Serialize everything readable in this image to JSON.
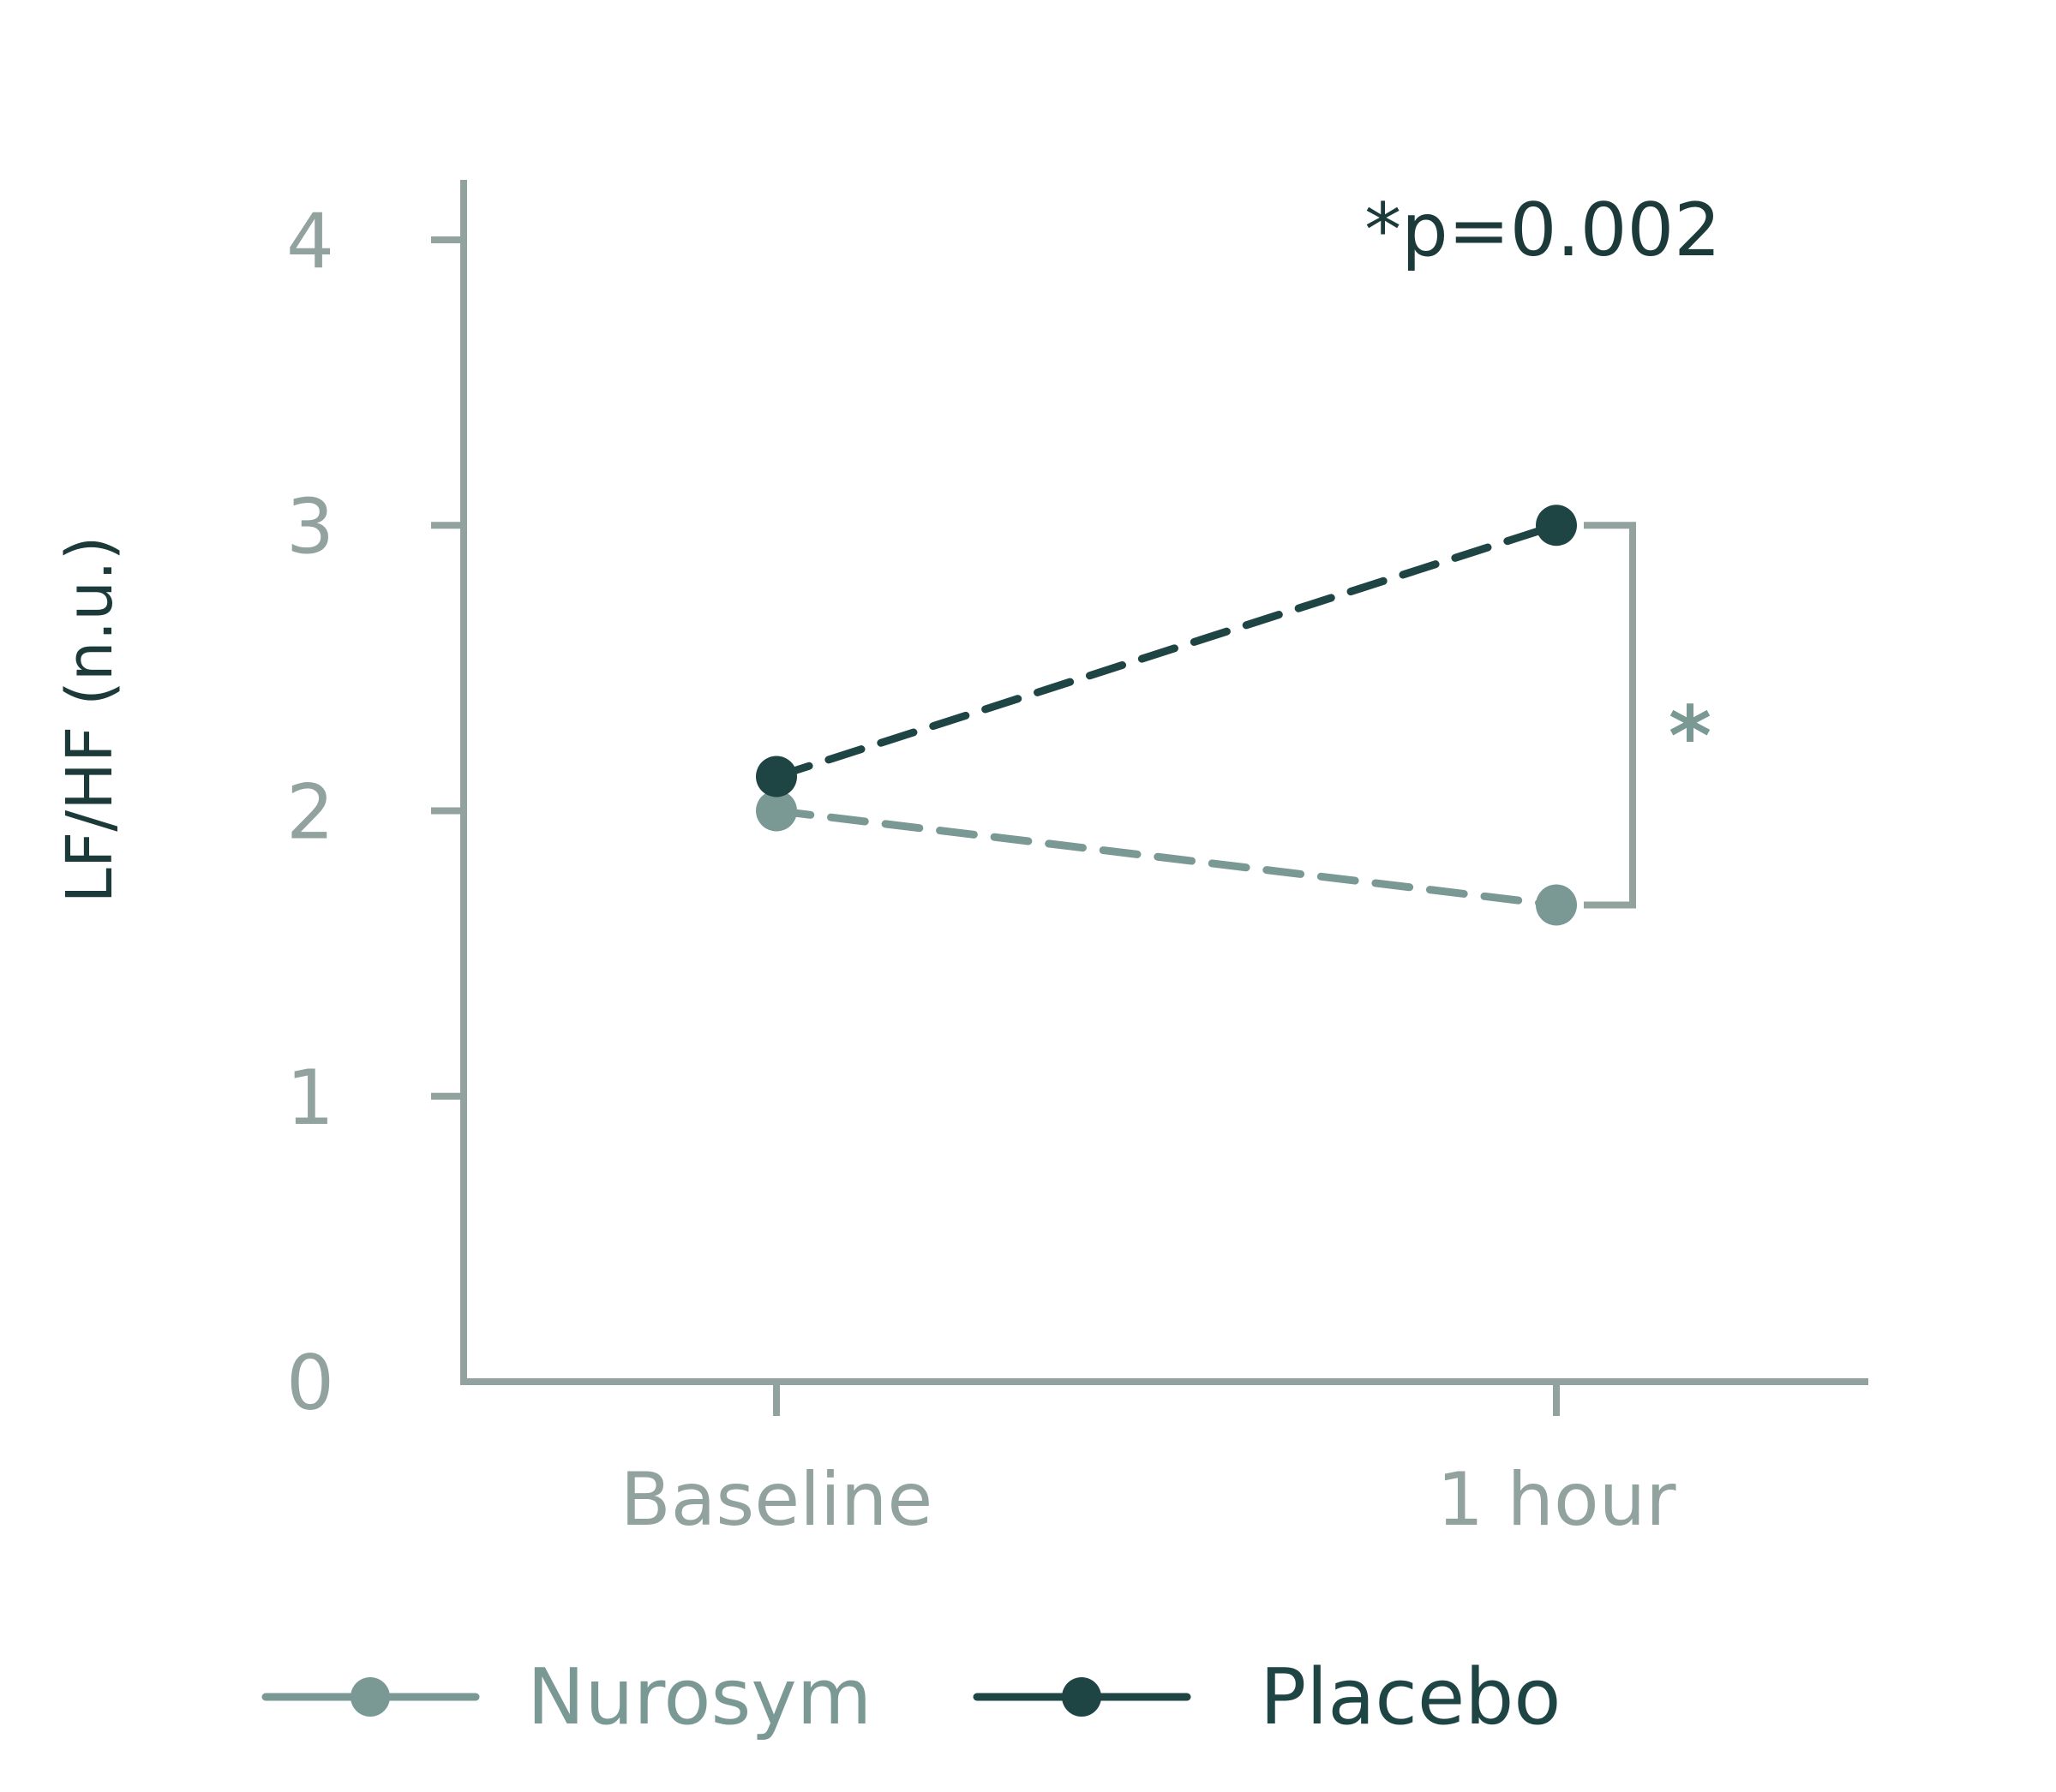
{
  "chart_data": {
    "type": "line",
    "ylabel": "LF/HF (n.u.)",
    "xlabel": "",
    "categories": [
      "Baseline",
      "1 hour"
    ],
    "ylim": [
      0,
      4
    ],
    "yticks": [
      "0",
      "1",
      "2",
      "3",
      "4"
    ],
    "grid": false,
    "series": [
      {
        "name": "Nurosym",
        "values": [
          2.0,
          1.67
        ],
        "color": "#7a9894",
        "line_style": "dashed"
      },
      {
        "name": "Placebo",
        "values": [
          2.12,
          3.0
        ],
        "color": "#1f4444",
        "line_style": "dashed"
      }
    ],
    "annotations": {
      "p_value": "*p=0.002",
      "significance_marker": "*"
    },
    "legend": {
      "placement": "bottom"
    },
    "colors": {
      "axis": "#92a29f",
      "tick_label": "#92a29f",
      "ylabel": "#1c3a3a",
      "annotation": "#1c3a3a"
    }
  }
}
